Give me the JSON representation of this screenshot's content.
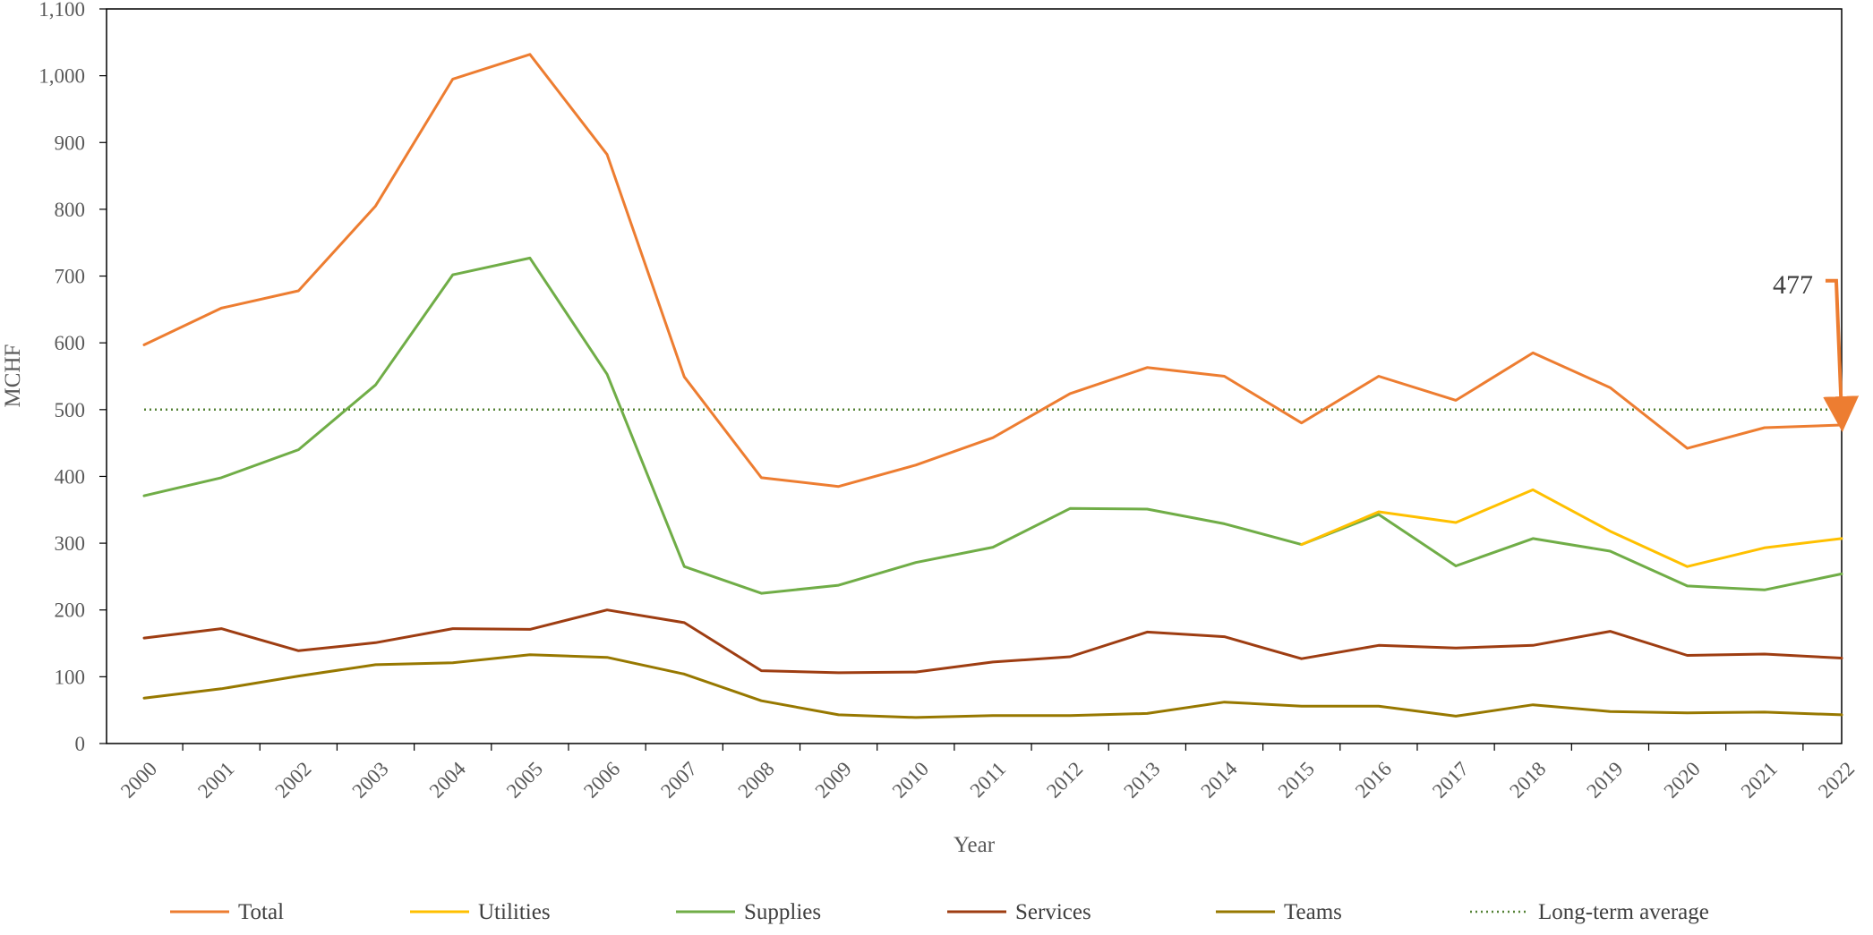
{
  "chart_data": {
    "type": "line",
    "title": "",
    "xlabel": "Year",
    "ylabel": "MCHF",
    "ylim": [
      0,
      1100
    ],
    "yticks": [
      0,
      100,
      200,
      300,
      400,
      500,
      600,
      700,
      800,
      900,
      1000,
      1100
    ],
    "ytick_labels": [
      "0",
      "100",
      "200",
      "300",
      "400",
      "500",
      "600",
      "700",
      "800",
      "900",
      "1,000",
      "1,100"
    ],
    "x": [
      "2000",
      "2001",
      "2002",
      "2003",
      "2004",
      "2005",
      "2006",
      "2007",
      "2008",
      "2009",
      "2010",
      "2011",
      "2012",
      "2013",
      "2014",
      "2015",
      "2016",
      "2017",
      "2018",
      "2019",
      "2020",
      "2021",
      "2022"
    ],
    "grid": false,
    "legend_position": "bottom",
    "series": [
      {
        "name": "Total",
        "color": "#ED7D31",
        "style": "solid",
        "values": [
          597,
          652,
          678,
          805,
          995,
          1032,
          882,
          549,
          398,
          385,
          417,
          458,
          524,
          563,
          550,
          480,
          550,
          514,
          585,
          533,
          442,
          473,
          477
        ]
      },
      {
        "name": "Utilities",
        "color": "#FFC000",
        "style": "solid",
        "values": [
          null,
          null,
          null,
          null,
          null,
          null,
          null,
          null,
          null,
          null,
          null,
          null,
          null,
          null,
          null,
          298,
          347,
          331,
          380,
          318,
          265,
          293,
          307
        ]
      },
      {
        "name": "Supplies",
        "color": "#70AD47",
        "style": "solid",
        "values": [
          371,
          398,
          440,
          537,
          702,
          727,
          553,
          265,
          225,
          237,
          271,
          294,
          352,
          351,
          329,
          298,
          343,
          266,
          307,
          288,
          236,
          230,
          254
        ]
      },
      {
        "name": "Services",
        "color": "#9E3D12",
        "style": "solid",
        "values": [
          158,
          172,
          139,
          151,
          172,
          171,
          200,
          181,
          109,
          106,
          107,
          122,
          130,
          167,
          160,
          127,
          147,
          143,
          147,
          168,
          132,
          134,
          128
        ]
      },
      {
        "name": "Teams",
        "color": "#977800",
        "style": "solid",
        "values": [
          68,
          82,
          101,
          118,
          121,
          133,
          129,
          104,
          64,
          43,
          39,
          42,
          42,
          45,
          62,
          56,
          56,
          41,
          58,
          48,
          46,
          47,
          43
        ]
      },
      {
        "name": "Long-term average",
        "color": "#548235",
        "style": "dotted",
        "values": [
          500,
          500,
          500,
          500,
          500,
          500,
          500,
          500,
          500,
          500,
          500,
          500,
          500,
          500,
          500,
          500,
          500,
          500,
          500,
          500,
          500,
          500,
          500
        ]
      }
    ],
    "annotation": {
      "text": "477",
      "series": "Total",
      "x": "2022",
      "value": 477,
      "color": "#ED7D31"
    }
  }
}
